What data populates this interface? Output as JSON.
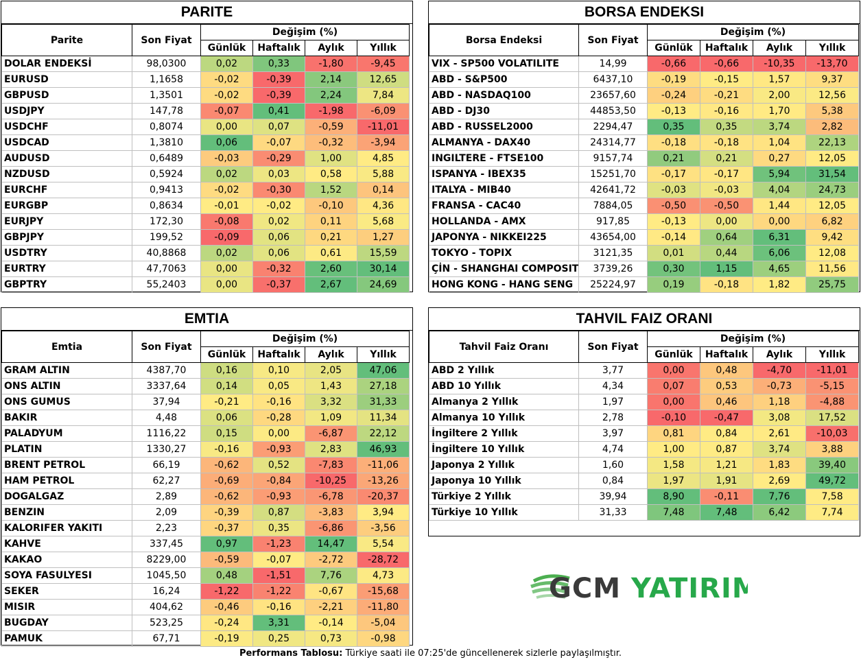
{
  "colors": {
    "green": "#63be7b",
    "red": "#f8696b",
    "yellow": "#ffeb84"
  },
  "parite": {
    "title": "PARITE",
    "col_name": "Parite",
    "col_price": "Son Fiyat",
    "col_change": "Değişim (%)",
    "cols": [
      "Günlük",
      "Haftalık",
      "Aylık",
      "Yıllık"
    ],
    "rows": [
      {
        "name": "DOLAR ENDEKSİ",
        "price": "98,0300",
        "v": [
          "0,02",
          "0,33",
          "-1,80",
          "-9,45"
        ]
      },
      {
        "name": "EURUSD",
        "price": "1,1658",
        "v": [
          "-0,02",
          "-0,39",
          "2,14",
          "12,65"
        ]
      },
      {
        "name": "GBPUSD",
        "price": "1,3501",
        "v": [
          "-0,02",
          "-0,39",
          "2,24",
          "7,84"
        ]
      },
      {
        "name": "USDJPY",
        "price": "147,78",
        "v": [
          "-0,07",
          "0,41",
          "-1,98",
          "-6,09"
        ]
      },
      {
        "name": "USDCHF",
        "price": "0,8074",
        "v": [
          "0,00",
          "0,07",
          "-0,59",
          "-11,01"
        ]
      },
      {
        "name": "USDCAD",
        "price": "1,3810",
        "v": [
          "0,06",
          "-0,07",
          "-0,32",
          "-3,94"
        ]
      },
      {
        "name": "AUDUSD",
        "price": "0,6489",
        "v": [
          "-0,03",
          "-0,29",
          "1,00",
          "4,85"
        ]
      },
      {
        "name": "NZDUSD",
        "price": "0,5924",
        "v": [
          "0,02",
          "0,03",
          "0,58",
          "5,88"
        ]
      },
      {
        "name": "EURCHF",
        "price": "0,9413",
        "v": [
          "-0,02",
          "-0,30",
          "1,52",
          "0,14"
        ]
      },
      {
        "name": "EURGBP",
        "price": "0,8634",
        "v": [
          "-0,01",
          "-0,02",
          "-0,10",
          "4,36"
        ]
      },
      {
        "name": "EURJPY",
        "price": "172,30",
        "v": [
          "-0,08",
          "0,02",
          "0,11",
          "5,68"
        ]
      },
      {
        "name": "GBPJPY",
        "price": "199,52",
        "v": [
          "-0,09",
          "0,06",
          "0,21",
          "1,27"
        ]
      },
      {
        "name": "USDTRY",
        "price": "40,8868",
        "v": [
          "0,02",
          "0,06",
          "0,61",
          "15,59"
        ]
      },
      {
        "name": "EURTRY",
        "price": "47,7063",
        "v": [
          "0,00",
          "-0,32",
          "2,60",
          "30,14"
        ]
      },
      {
        "name": "GBPTRY",
        "price": "55,2403",
        "v": [
          "0,00",
          "-0,37",
          "2,67",
          "24,69"
        ]
      }
    ]
  },
  "borsa": {
    "title": "BORSA ENDEKSI",
    "col_name": "Borsa Endeksi",
    "col_price": "Son Fiyat",
    "col_change": "Değişim (%)",
    "cols": [
      "Günlük",
      "Haftalık",
      "Aylık",
      "Yıllık"
    ],
    "rows": [
      {
        "name": "VIX  - SP500 VOLATILITE",
        "price": "14,99",
        "v": [
          "-0,66",
          "-0,66",
          "-10,35",
          "-13,70"
        ]
      },
      {
        "name": "ABD - S&P500",
        "price": "6437,10",
        "v": [
          "-0,19",
          "-0,15",
          "1,57",
          "9,37"
        ]
      },
      {
        "name": "ABD - NASDAQ100",
        "price": "23657,60",
        "v": [
          "-0,24",
          "-0,21",
          "2,00",
          "12,56"
        ]
      },
      {
        "name": "ABD - DJ30",
        "price": "44853,50",
        "v": [
          "-0,13",
          "-0,16",
          "1,70",
          "5,38"
        ]
      },
      {
        "name": "ABD - RUSSEL2000",
        "price": "2294,47",
        "v": [
          "0,35",
          "0,35",
          "3,74",
          "2,82"
        ]
      },
      {
        "name": "ALMANYA - DAX40",
        "price": "24314,77",
        "v": [
          "-0,18",
          "-0,18",
          "1,04",
          "22,13"
        ]
      },
      {
        "name": "INGILTERE - FTSE100",
        "price": "9157,74",
        "v": [
          "0,21",
          "0,21",
          "0,27",
          "12,05"
        ]
      },
      {
        "name": "ISPANYA - IBEX35",
        "price": "15251,70",
        "v": [
          "-0,17",
          "-0,17",
          "5,94",
          "31,54"
        ]
      },
      {
        "name": "ITALYA - MIB40",
        "price": "42641,72",
        "v": [
          "-0,03",
          "-0,03",
          "4,04",
          "24,73"
        ]
      },
      {
        "name": "FRANSA - CAC40",
        "price": "7884,05",
        "v": [
          "-0,50",
          "-0,50",
          "1,44",
          "12,05"
        ]
      },
      {
        "name": "HOLLANDA - AMX",
        "price": "917,85",
        "v": [
          "-0,13",
          "0,00",
          "0,00",
          "6,82"
        ]
      },
      {
        "name": "JAPONYA - NIKKEI225",
        "price": "43654,00",
        "v": [
          "-0,14",
          "0,64",
          "6,31",
          "9,42"
        ]
      },
      {
        "name": "TOKYO - TOPIX",
        "price": "3121,35",
        "v": [
          "0,01",
          "0,44",
          "6,06",
          "12,08"
        ]
      },
      {
        "name": "ÇİN - SHANGHAI COMPOSITE",
        "price": "3739,26",
        "v": [
          "0,30",
          "1,15",
          "4,65",
          "11,56"
        ]
      },
      {
        "name": "HONG KONG - HANG SENG",
        "price": "25224,97",
        "v": [
          "0,19",
          "-0,18",
          "1,82",
          "25,75"
        ]
      }
    ]
  },
  "emtia": {
    "title": "EMTIA",
    "col_name": "Emtia",
    "col_price": "Son Fiyat",
    "col_change": "Değişim (%)",
    "cols": [
      "Günlük",
      "Haftalık",
      "Aylık",
      "Yıllık"
    ],
    "rows": [
      {
        "name": "GRAM ALTIN",
        "price": "4387,70",
        "v": [
          "0,16",
          "0,10",
          "2,05",
          "47,06"
        ]
      },
      {
        "name": "ONS ALTIN",
        "price": "3337,64",
        "v": [
          "0,14",
          "0,05",
          "1,43",
          "27,18"
        ]
      },
      {
        "name": "ONS GUMUS",
        "price": "37,94",
        "v": [
          "-0,21",
          "-0,16",
          "3,32",
          "31,33"
        ]
      },
      {
        "name": "BAKIR",
        "price": "4,48",
        "v": [
          "0,06",
          "-0,28",
          "1,09",
          "11,34"
        ]
      },
      {
        "name": "PALADYUM",
        "price": "1116,22",
        "v": [
          "0,15",
          "0,00",
          "-6,87",
          "22,12"
        ]
      },
      {
        "name": "PLATIN",
        "price": "1330,27",
        "v": [
          "-0,16",
          "-0,93",
          "2,83",
          "46,93"
        ]
      },
      {
        "name": "BRENT PETROL",
        "price": "66,19",
        "v": [
          "-0,62",
          "0,52",
          "-7,83",
          "-11,06"
        ]
      },
      {
        "name": "HAM PETROL",
        "price": "62,27",
        "v": [
          "-0,69",
          "-0,84",
          "-10,25",
          "-13,26"
        ]
      },
      {
        "name": "DOGALGAZ",
        "price": "2,89",
        "v": [
          "-0,62",
          "-0,93",
          "-6,78",
          "-20,37"
        ]
      },
      {
        "name": "BENZIN",
        "price": "2,09",
        "v": [
          "-0,39",
          "0,87",
          "-3,83",
          "3,94"
        ]
      },
      {
        "name": "KALORIFER YAKITI",
        "price": "2,23",
        "v": [
          "-0,37",
          "0,35",
          "-6,86",
          "-3,56"
        ]
      },
      {
        "name": "KAHVE",
        "price": "337,45",
        "v": [
          "0,97",
          "-1,23",
          "14,47",
          "5,54"
        ]
      },
      {
        "name": "KAKAO",
        "price": "8229,00",
        "v": [
          "-0,59",
          "-0,07",
          "-2,72",
          "-28,72"
        ]
      },
      {
        "name": "SOYA FASULYESI",
        "price": "1045,50",
        "v": [
          "0,48",
          "-1,51",
          "7,76",
          "4,73"
        ]
      },
      {
        "name": "SEKER",
        "price": "16,24",
        "v": [
          "-1,22",
          "-1,22",
          "-0,67",
          "-15,68"
        ]
      },
      {
        "name": "MISIR",
        "price": "404,62",
        "v": [
          "-0,46",
          "-0,16",
          "-2,21",
          "-11,80"
        ]
      },
      {
        "name": "BUGDAY",
        "price": "523,25",
        "v": [
          "-0,24",
          "3,31",
          "-0,14",
          "-5,04"
        ]
      },
      {
        "name": "PAMUK",
        "price": "67,71",
        "v": [
          "-0,19",
          "0,25",
          "0,73",
          "-0,98"
        ]
      }
    ]
  },
  "tahvil": {
    "title": "TAHVIL FAIZ ORANI",
    "col_name": "Tahvil Faiz Oranı",
    "col_price": "Son Fiyat",
    "col_change": "Değişim (%)",
    "cols": [
      "Günlük",
      "Haftalık",
      "Aylık",
      "Yıllık"
    ],
    "rows": [
      {
        "name": "ABD 2 Yıllık",
        "price": "3,77",
        "v": [
          "0,00",
          "0,48",
          "-4,70",
          "-11,01"
        ]
      },
      {
        "name": "ABD 10 Yıllık",
        "price": "4,34",
        "v": [
          "0,07",
          "0,53",
          "-0,73",
          "-5,15"
        ]
      },
      {
        "name": "Almanya 2 Yıllık",
        "price": "1,97",
        "v": [
          "0,00",
          "0,46",
          "1,18",
          "-4,88"
        ]
      },
      {
        "name": "Almanya 10 Yıllık",
        "price": "2,78",
        "v": [
          "-0,10",
          "-0,47",
          "3,08",
          "17,52"
        ]
      },
      {
        "name": "İngiltere 2 Yıllık",
        "price": "3,97",
        "v": [
          "0,81",
          "0,84",
          "2,61",
          "-10,03"
        ]
      },
      {
        "name": "İngiltere 10 Yıllık",
        "price": "4,74",
        "v": [
          "1,00",
          "0,87",
          "3,74",
          "3,88"
        ]
      },
      {
        "name": "Japonya 2 Yıllık",
        "price": "1,60",
        "v": [
          "1,58",
          "1,21",
          "1,83",
          "39,40"
        ]
      },
      {
        "name": "Japonya 10 Yıllık",
        "price": "0,84",
        "v": [
          "1,97",
          "1,91",
          "2,69",
          "49,72"
        ]
      },
      {
        "name": "Türkiye 2 Yıllık",
        "price": "39,94",
        "v": [
          "8,90",
          "-0,11",
          "7,76",
          "7,58"
        ]
      },
      {
        "name": "Türkiye 10 Yıllık",
        "price": "31,33",
        "v": [
          "7,48",
          "7,48",
          "6,42",
          "7,74"
        ]
      }
    ]
  },
  "logo": {
    "text1": "GCM",
    "text2": "YATIRIM"
  },
  "footer": {
    "bold": "Performans Tablosu:",
    "text": " Türkiye saati ile 07:25'de güncellenerek sizlerle paylaşılmıştır."
  }
}
